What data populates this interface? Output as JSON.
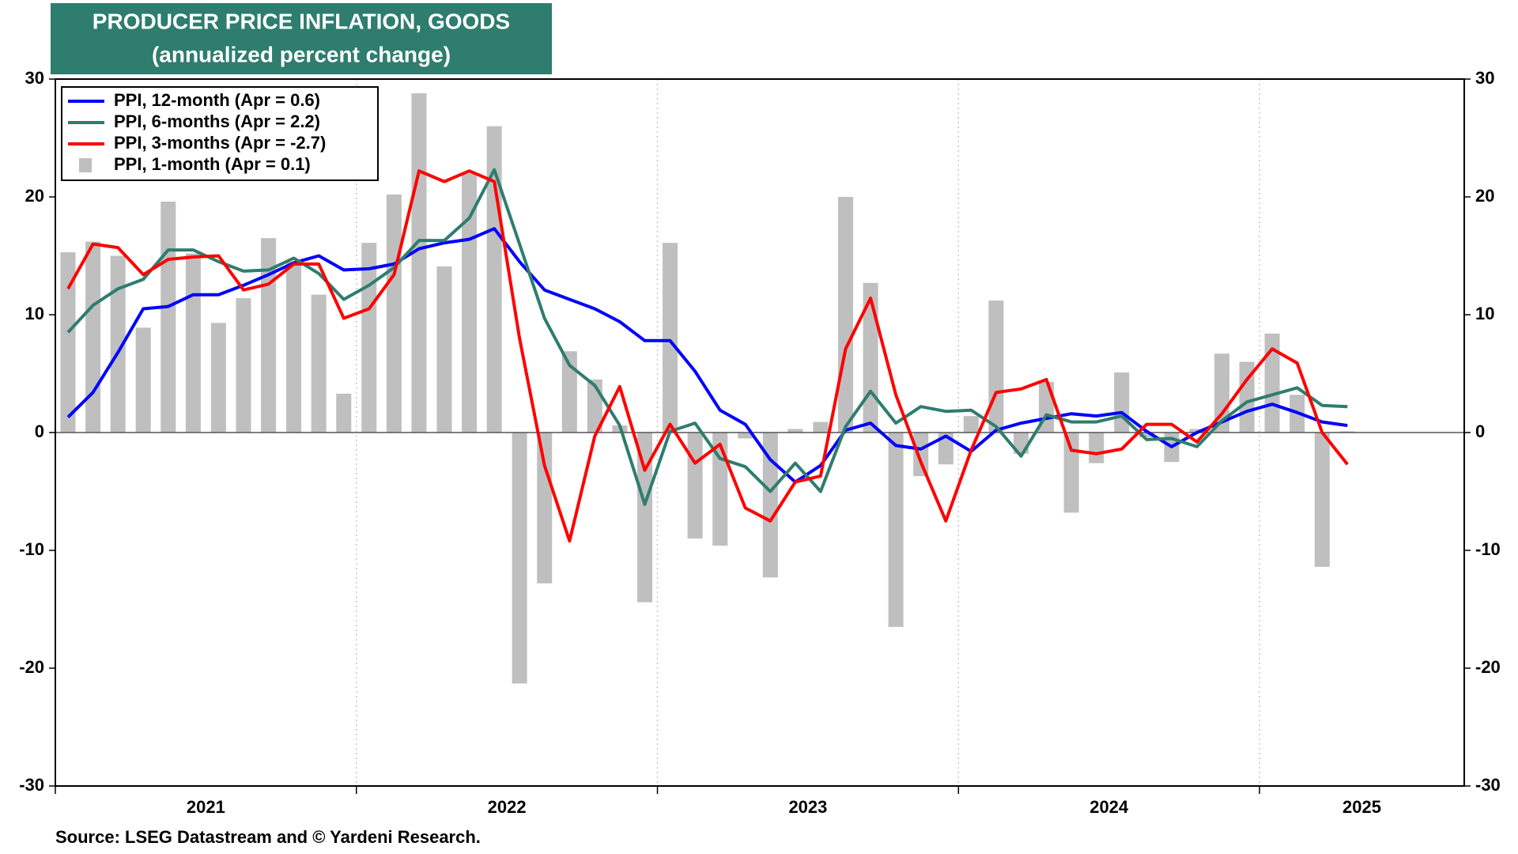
{
  "chart_data": {
    "type": "line",
    "title": "PRODUCER PRICE INFLATION, GOODS",
    "subtitle": "(annualized percent change)",
    "source": "Source: LSEG Datastream and © Yardeni Research.",
    "x": [
      2021.042,
      2021.125,
      2021.208,
      2021.292,
      2021.375,
      2021.458,
      2021.542,
      2021.625,
      2021.708,
      2021.792,
      2021.875,
      2021.958,
      2022.042,
      2022.125,
      2022.208,
      2022.292,
      2022.375,
      2022.458,
      2022.542,
      2022.625,
      2022.708,
      2022.792,
      2022.875,
      2022.958,
      2023.042,
      2023.125,
      2023.208,
      2023.292,
      2023.375,
      2023.458,
      2023.542,
      2023.625,
      2023.708,
      2023.792,
      2023.875,
      2023.958,
      2024.042,
      2024.125,
      2024.208,
      2024.292,
      2024.375,
      2024.458,
      2024.542,
      2024.625,
      2024.708,
      2024.792,
      2024.875,
      2024.958,
      2025.042,
      2025.125,
      2025.208,
      2025.292
    ],
    "xlim": [
      2021,
      2025.68
    ],
    "xticks": [
      2021,
      2022,
      2023,
      2024,
      2025
    ],
    "ylim": [
      -30,
      30
    ],
    "yticks": [
      -30,
      -20,
      -10,
      0,
      10,
      20,
      30
    ],
    "grid": "x",
    "legend": "upper left",
    "series": [
      {
        "name": "PPI, 12-month (Apr = 0.6)",
        "type": "line",
        "color": "#0000ff",
        "values": [
          1.3,
          3.4,
          6.8,
          10.5,
          10.7,
          11.7,
          11.7,
          12.5,
          13.4,
          14.4,
          15.0,
          13.8,
          13.9,
          14.3,
          15.6,
          16.1,
          16.4,
          17.3,
          14.5,
          12.1,
          11.3,
          10.5,
          9.4,
          7.8,
          7.8,
          5.2,
          1.9,
          0.7,
          -2.3,
          -4.2,
          -2.8,
          0.2,
          0.8,
          -1.1,
          -1.4,
          -0.3,
          -1.6,
          0.2,
          0.8,
          1.2,
          1.6,
          1.4,
          1.7,
          0.1,
          -1.2,
          0.0,
          0.9,
          1.8,
          2.4,
          1.7,
          0.9,
          0.6
        ]
      },
      {
        "name": "PPI, 6-months (Apr = 2.2)",
        "type": "line",
        "color": "#2e7d6e",
        "values": [
          8.5,
          10.8,
          12.2,
          13.0,
          15.5,
          15.5,
          14.5,
          13.7,
          13.8,
          14.8,
          13.5,
          11.3,
          12.5,
          14.0,
          16.3,
          16.3,
          18.2,
          22.3,
          16.0,
          9.7,
          5.7,
          4.0,
          0.6,
          -6.1,
          0.1,
          0.8,
          -2.2,
          -2.9,
          -5.0,
          -2.6,
          -5.0,
          0.5,
          3.5,
          0.8,
          2.2,
          1.8,
          1.9,
          0.5,
          -2.0,
          1.5,
          0.9,
          0.9,
          1.4,
          -0.6,
          -0.5,
          -1.2,
          1.0,
          2.6,
          3.2,
          3.8,
          2.3,
          2.2
        ]
      },
      {
        "name": "PPI, 3-months (Apr = -2.7)",
        "type": "line",
        "color": "#ff0000",
        "values": [
          12.2,
          16.0,
          15.7,
          13.4,
          14.7,
          14.9,
          15.0,
          12.1,
          12.6,
          14.3,
          14.3,
          9.7,
          10.5,
          13.4,
          22.2,
          21.3,
          22.2,
          21.3,
          8.0,
          -2.8,
          -9.2,
          -0.3,
          3.9,
          -3.2,
          0.7,
          -2.6,
          -1.0,
          -6.4,
          -7.5,
          -4.2,
          -3.7,
          7.1,
          11.4,
          3.2,
          -2.5,
          -7.5,
          -1.5,
          3.4,
          3.7,
          4.5,
          -1.5,
          -1.8,
          -1.4,
          0.7,
          0.7,
          -0.8,
          1.6,
          4.5,
          7.1,
          5.9,
          0.0,
          -2.7
        ]
      },
      {
        "name": "PPI, 1-month (Apr = 0.1)",
        "type": "bar",
        "color": "#bfbfbf",
        "values": [
          15.3,
          16.2,
          15.0,
          8.9,
          19.6,
          15.2,
          9.3,
          11.4,
          16.5,
          14.5,
          11.7,
          3.3,
          16.1,
          20.2,
          28.8,
          14.1,
          22.0,
          26.0,
          -21.3,
          -12.8,
          6.9,
          4.5,
          0.6,
          -14.4,
          16.1,
          -9.0,
          -9.6,
          -0.5,
          -12.3,
          0.3,
          0.9,
          20.0,
          12.7,
          -16.5,
          -3.7,
          -2.7,
          1.4,
          11.2,
          -1.8,
          4.3,
          -6.8,
          -2.6,
          5.1,
          -0.4,
          -2.5,
          0.3,
          6.7,
          6.0,
          8.4,
          3.2,
          -11.4,
          0.1
        ]
      }
    ]
  }
}
